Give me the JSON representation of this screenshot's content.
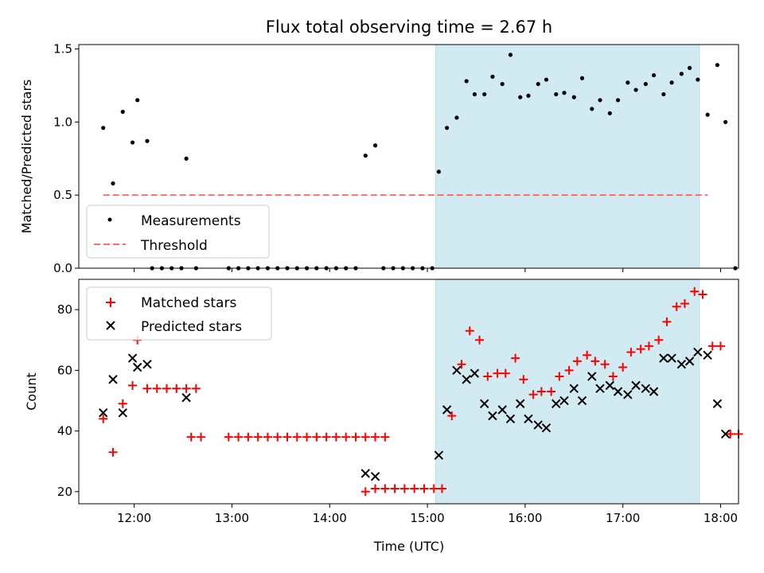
{
  "figure": {
    "title": "Flux total observing time = 2.67 h",
    "xlabel": "Time (UTC)"
  },
  "colors": {
    "shade": "#add8e6",
    "measurement": "#000000",
    "threshold": "#ff6b6b",
    "matched": "#ff0000",
    "predicted": "#000000"
  },
  "chart_data": [
    {
      "type": "scatter",
      "panel": "top",
      "ylabel": "Matched/Predicted stars",
      "xlim": [
        "11:26",
        "18:11"
      ],
      "ylim": [
        0,
        1.53
      ],
      "xticks": [
        "12:00",
        "13:00",
        "14:00",
        "15:00",
        "16:00",
        "17:00",
        "18:00"
      ],
      "yticks": [
        0.0,
        0.5,
        1.0,
        1.5
      ],
      "shaded_span": [
        "15:05",
        "17:47"
      ],
      "threshold": 0.5,
      "threshold_x": [
        "11:41",
        "17:52"
      ],
      "legend_position": "lower left",
      "legend": [
        "Measurements",
        "Threshold"
      ],
      "series": [
        {
          "name": "Measurements",
          "marker": "dot",
          "points": [
            [
              "11:41",
              0.96
            ],
            [
              "11:47",
              0.58
            ],
            [
              "11:53",
              1.07
            ],
            [
              "11:59",
              0.86
            ],
            [
              "12:02",
              1.15
            ],
            [
              "12:08",
              0.87
            ],
            [
              "12:11",
              0.0
            ],
            [
              "12:17",
              0.0
            ],
            [
              "12:23",
              0.0
            ],
            [
              "12:29",
              0.0
            ],
            [
              "12:32",
              0.75
            ],
            [
              "12:38",
              0.0
            ],
            [
              "12:58",
              0.0
            ],
            [
              "13:04",
              0.0
            ],
            [
              "13:10",
              0.0
            ],
            [
              "13:16",
              0.0
            ],
            [
              "13:22",
              0.0
            ],
            [
              "13:28",
              0.0
            ],
            [
              "13:34",
              0.0
            ],
            [
              "13:40",
              0.0
            ],
            [
              "13:46",
              0.0
            ],
            [
              "13:52",
              0.0
            ],
            [
              "13:58",
              0.0
            ],
            [
              "14:04",
              0.0
            ],
            [
              "14:10",
              0.0
            ],
            [
              "14:16",
              0.0
            ],
            [
              "14:22",
              0.77
            ],
            [
              "14:28",
              0.84
            ],
            [
              "14:33",
              0.0
            ],
            [
              "14:39",
              0.0
            ],
            [
              "14:45",
              0.0
            ],
            [
              "14:51",
              0.0
            ],
            [
              "14:57",
              0.0
            ],
            [
              "15:03",
              0.0
            ],
            [
              "15:07",
              0.66
            ],
            [
              "15:12",
              0.96
            ],
            [
              "15:18",
              1.03
            ],
            [
              "15:24",
              1.28
            ],
            [
              "15:29",
              1.19
            ],
            [
              "15:35",
              1.19
            ],
            [
              "15:40",
              1.31
            ],
            [
              "15:46",
              1.26
            ],
            [
              "15:51",
              1.46
            ],
            [
              "15:57",
              1.17
            ],
            [
              "16:02",
              1.18
            ],
            [
              "16:08",
              1.26
            ],
            [
              "16:13",
              1.29
            ],
            [
              "16:19",
              1.19
            ],
            [
              "16:24",
              1.2
            ],
            [
              "16:30",
              1.17
            ],
            [
              "16:35",
              1.3
            ],
            [
              "16:41",
              1.09
            ],
            [
              "16:46",
              1.15
            ],
            [
              "16:52",
              1.06
            ],
            [
              "16:57",
              1.15
            ],
            [
              "17:03",
              1.27
            ],
            [
              "17:08",
              1.22
            ],
            [
              "17:14",
              1.26
            ],
            [
              "17:19",
              1.32
            ],
            [
              "17:25",
              1.19
            ],
            [
              "17:30",
              1.27
            ],
            [
              "17:36",
              1.33
            ],
            [
              "17:41",
              1.37
            ],
            [
              "17:46",
              1.29
            ],
            [
              "17:52",
              1.05
            ],
            [
              "17:58",
              1.39
            ],
            [
              "18:03",
              1.0
            ],
            [
              "18:09",
              0.0
            ]
          ]
        }
      ]
    },
    {
      "type": "scatter",
      "panel": "bottom",
      "ylabel": "Count",
      "xlabel": "Time (UTC)",
      "xlim": [
        "11:26",
        "18:11"
      ],
      "ylim": [
        16,
        90
      ],
      "xticks": [
        "12:00",
        "13:00",
        "14:00",
        "15:00",
        "16:00",
        "17:00",
        "18:00"
      ],
      "yticks": [
        20,
        40,
        60,
        80
      ],
      "shaded_span": [
        "15:05",
        "17:47"
      ],
      "legend_position": "upper left",
      "legend": [
        "Matched stars",
        "Predicted stars"
      ],
      "series": [
        {
          "name": "Matched stars",
          "marker": "plus",
          "points": [
            [
              "11:41",
              44
            ],
            [
              "11:47",
              33
            ],
            [
              "11:53",
              49
            ],
            [
              "11:59",
              55
            ],
            [
              "12:02",
              70
            ],
            [
              "12:08",
              54
            ],
            [
              "12:14",
              54
            ],
            [
              "12:20",
              54
            ],
            [
              "12:26",
              54
            ],
            [
              "12:32",
              54
            ],
            [
              "12:38",
              54
            ],
            [
              "12:35",
              38
            ],
            [
              "12:41",
              38
            ],
            [
              "12:58",
              38
            ],
            [
              "13:04",
              38
            ],
            [
              "13:10",
              38
            ],
            [
              "13:16",
              38
            ],
            [
              "13:22",
              38
            ],
            [
              "13:28",
              38
            ],
            [
              "13:34",
              38
            ],
            [
              "13:40",
              38
            ],
            [
              "13:46",
              38
            ],
            [
              "13:52",
              38
            ],
            [
              "13:58",
              38
            ],
            [
              "14:04",
              38
            ],
            [
              "14:10",
              38
            ],
            [
              "14:16",
              38
            ],
            [
              "14:22",
              38
            ],
            [
              "14:28",
              38
            ],
            [
              "14:34",
              38
            ],
            [
              "14:22",
              20
            ],
            [
              "14:28",
              21
            ],
            [
              "14:34",
              21
            ],
            [
              "14:40",
              21
            ],
            [
              "14:46",
              21
            ],
            [
              "14:52",
              21
            ],
            [
              "14:58",
              21
            ],
            [
              "15:04",
              21
            ],
            [
              "15:09",
              21
            ],
            [
              "15:15",
              45
            ],
            [
              "15:21",
              62
            ],
            [
              "15:26",
              73
            ],
            [
              "15:32",
              70
            ],
            [
              "15:37",
              58
            ],
            [
              "15:43",
              59
            ],
            [
              "15:48",
              59
            ],
            [
              "15:54",
              64
            ],
            [
              "15:59",
              57
            ],
            [
              "16:05",
              52
            ],
            [
              "16:10",
              53
            ],
            [
              "16:16",
              53
            ],
            [
              "16:21",
              58
            ],
            [
              "16:27",
              60
            ],
            [
              "16:32",
              63
            ],
            [
              "16:38",
              65
            ],
            [
              "16:43",
              63
            ],
            [
              "16:49",
              62
            ],
            [
              "16:54",
              58
            ],
            [
              "17:00",
              61
            ],
            [
              "17:05",
              66
            ],
            [
              "17:11",
              67
            ],
            [
              "17:16",
              68
            ],
            [
              "17:22",
              70
            ],
            [
              "17:27",
              76
            ],
            [
              "17:33",
              81
            ],
            [
              "17:38",
              82
            ],
            [
              "17:44",
              86
            ],
            [
              "17:49",
              85
            ],
            [
              "17:55",
              68
            ],
            [
              "18:00",
              68
            ],
            [
              "18:06",
              39
            ],
            [
              "18:11",
              39
            ]
          ]
        },
        {
          "name": "Predicted stars",
          "marker": "x",
          "points": [
            [
              "11:41",
              46
            ],
            [
              "11:47",
              57
            ],
            [
              "11:53",
              46
            ],
            [
              "11:59",
              64
            ],
            [
              "12:02",
              61
            ],
            [
              "12:08",
              62
            ],
            [
              "12:32",
              51
            ],
            [
              "14:22",
              26
            ],
            [
              "14:28",
              25
            ],
            [
              "15:07",
              32
            ],
            [
              "15:12",
              47
            ],
            [
              "15:18",
              60
            ],
            [
              "15:24",
              57
            ],
            [
              "15:29",
              59
            ],
            [
              "15:35",
              49
            ],
            [
              "15:40",
              45
            ],
            [
              "15:46",
              47
            ],
            [
              "15:51",
              44
            ],
            [
              "15:57",
              49
            ],
            [
              "16:02",
              44
            ],
            [
              "16:08",
              42
            ],
            [
              "16:13",
              41
            ],
            [
              "16:19",
              49
            ],
            [
              "16:24",
              50
            ],
            [
              "16:30",
              54
            ],
            [
              "16:35",
              50
            ],
            [
              "16:41",
              58
            ],
            [
              "16:46",
              54
            ],
            [
              "16:52",
              55
            ],
            [
              "16:57",
              53
            ],
            [
              "17:03",
              52
            ],
            [
              "17:08",
              55
            ],
            [
              "17:14",
              54
            ],
            [
              "17:19",
              53
            ],
            [
              "17:25",
              64
            ],
            [
              "17:30",
              64
            ],
            [
              "17:36",
              62
            ],
            [
              "17:41",
              63
            ],
            [
              "17:46",
              66
            ],
            [
              "17:52",
              65
            ],
            [
              "17:58",
              49
            ],
            [
              "18:03",
              39
            ]
          ]
        }
      ]
    }
  ]
}
